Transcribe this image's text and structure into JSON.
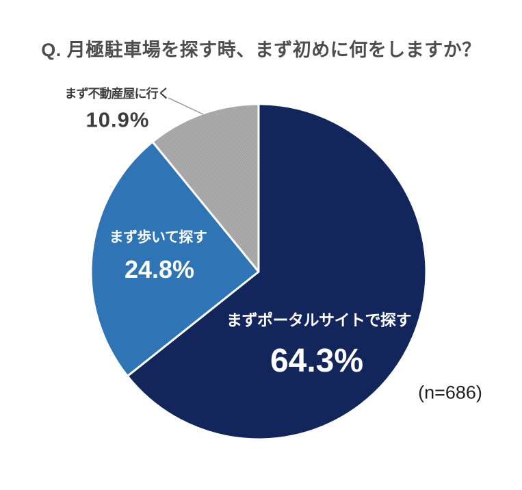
{
  "title": "Q. 月極駐車場を探す時、まず初めに何をしますか？",
  "sample_size_label": "(n=686)",
  "chart_data": {
    "type": "pie",
    "title": "Q. 月極駐車場を探す時、まず初めに何をしますか？",
    "categories": [
      "まずポータルサイトで探す",
      "まず歩いて探す",
      "まず不動産屋に行く"
    ],
    "values": [
      64.3,
      24.8,
      10.9
    ],
    "unit": "%",
    "annotation": "(n=686)",
    "start_angle_deg": 0,
    "direction": "clockwise",
    "legend": "none",
    "slices": [
      {
        "label": "まずポータルサイトで探す",
        "value": 64.3,
        "display": "64.3%",
        "color": "#13265c",
        "pattern": "solid",
        "label_position": "inside",
        "label_color": "#ffffff"
      },
      {
        "label": "まず歩いて探す",
        "value": 24.8,
        "display": "24.8%",
        "color": "#2f75b5",
        "pattern": "solid",
        "label_position": "inside",
        "label_color": "#ffffff"
      },
      {
        "label": "まず不動産屋に行く",
        "value": 10.9,
        "display": "10.9%",
        "color": "#ababab",
        "pattern": "dots",
        "label_position": "outside-with-leader-line",
        "label_color": "#3d3d3d"
      }
    ],
    "style": {
      "slice_divider_color": "#ffffff",
      "leader_line_color": "#9b9b9b",
      "title_color": "#4d4d4d",
      "annotation_color": "#1f1f1f",
      "dot_pattern_color": "#9a9a9a",
      "background": "#ffffff"
    }
  }
}
